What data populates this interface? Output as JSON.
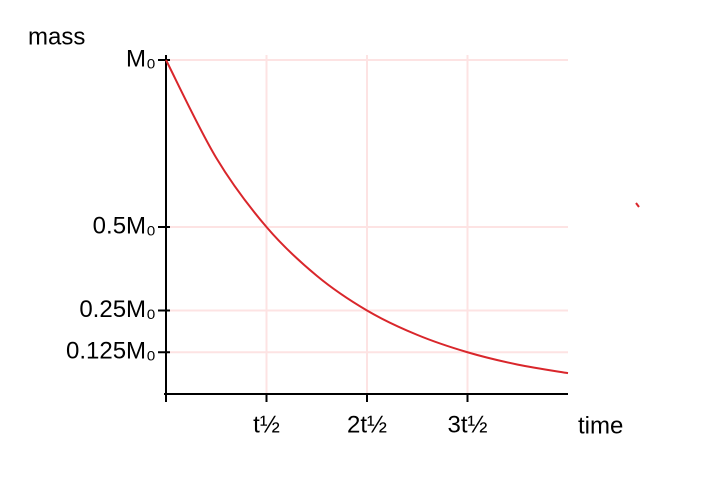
{
  "chart_data": {
    "type": "line",
    "xlabel": "time",
    "ylabel": "mass",
    "x": [
      0,
      0.5,
      1,
      1.5,
      2,
      2.5,
      3,
      3.5,
      4
    ],
    "series": [
      {
        "color": "#d9262b",
        "values": [
          1,
          0.707,
          0.5,
          0.354,
          0.25,
          0.177,
          0.125,
          0.088,
          0.0625
        ]
      }
    ],
    "xlim": [
      0,
      4
    ],
    "ylim": [
      0,
      1
    ],
    "xticks": [
      {
        "value": 1,
        "label": "t½"
      },
      {
        "value": 2,
        "label": "2t½"
      },
      {
        "value": 3,
        "label": "3t½"
      }
    ],
    "yticks": [
      {
        "value": 1,
        "label": "M₀"
      },
      {
        "value": 0.5,
        "label": "0.5M₀"
      },
      {
        "value": 0.25,
        "label": "0.25M₀"
      },
      {
        "value": 0.125,
        "label": "0.125M₀"
      }
    ],
    "grid": true
  }
}
